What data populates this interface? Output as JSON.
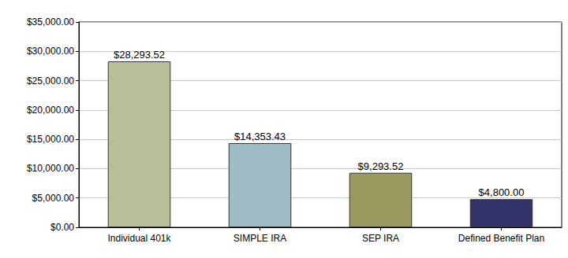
{
  "chart_data": {
    "type": "bar",
    "categories": [
      "Individual 401k",
      "SIMPLE IRA",
      "SEP IRA",
      "Defined Benefit Plan"
    ],
    "values": [
      28293.52,
      14353.43,
      9293.52,
      4800.0
    ],
    "value_labels": [
      "$28,293.52",
      "$14,353.43",
      "$9,293.52",
      "$4,800.00"
    ],
    "colors": [
      "#b9bf9a",
      "#9ebdc7",
      "#999960",
      "#33336b"
    ],
    "ylim": [
      0,
      35000
    ],
    "yticks": [
      {
        "value": 0,
        "label": "$0.00"
      },
      {
        "value": 5000,
        "label": "$5,000.00"
      },
      {
        "value": 10000,
        "label": "$10,000.00"
      },
      {
        "value": 15000,
        "label": "$15,000.00"
      },
      {
        "value": 20000,
        "label": "$20,000.00"
      },
      {
        "value": 25000,
        "label": "$25,000.00"
      },
      {
        "value": 30000,
        "label": "$30,000.00"
      },
      {
        "value": 35000,
        "label": "$35,000.00"
      }
    ],
    "grid": true,
    "data_labels": true
  }
}
